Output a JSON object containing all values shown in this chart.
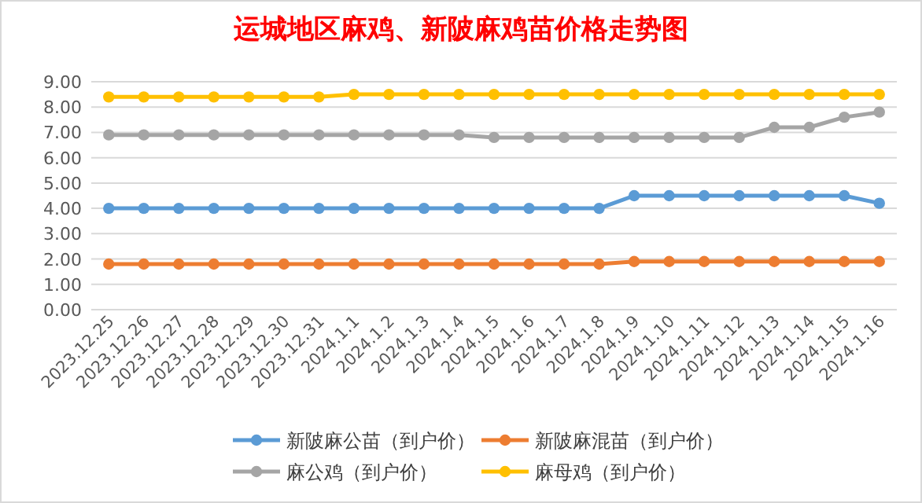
{
  "chart_data": {
    "type": "line",
    "title": "运城地区麻鸡、新陂麻鸡苗价格走势图",
    "categories": [
      "2023.12.25",
      "2023.12.26",
      "2023.12.27",
      "2023.12.28",
      "2023.12.29",
      "2023.12.30",
      "2023.12.31",
      "2024.1.1",
      "2024.1.2",
      "2024.1.3",
      "2024.1.4",
      "2024.1.5",
      "2024.1.6",
      "2024.1.7",
      "2024.1.8",
      "2024.1.9",
      "2024.1.10",
      "2024.1.11",
      "2024.1.12",
      "2024.1.13",
      "2024.1.14",
      "2024.1.15",
      "2024.1.16"
    ],
    "series": [
      {
        "name": "新陂麻公苗（到户价）",
        "color": "#5b9bd5",
        "values": [
          4.0,
          4.0,
          4.0,
          4.0,
          4.0,
          4.0,
          4.0,
          4.0,
          4.0,
          4.0,
          4.0,
          4.0,
          4.0,
          4.0,
          4.0,
          4.5,
          4.5,
          4.5,
          4.5,
          4.5,
          4.5,
          4.5,
          4.2
        ]
      },
      {
        "name": "新陂麻混苗（到户价）",
        "color": "#ed7d31",
        "values": [
          1.8,
          1.8,
          1.8,
          1.8,
          1.8,
          1.8,
          1.8,
          1.8,
          1.8,
          1.8,
          1.8,
          1.8,
          1.8,
          1.8,
          1.8,
          1.9,
          1.9,
          1.9,
          1.9,
          1.9,
          1.9,
          1.9,
          1.9
        ]
      },
      {
        "name": "麻公鸡（到户价）",
        "color": "#a5a5a5",
        "values": [
          6.9,
          6.9,
          6.9,
          6.9,
          6.9,
          6.9,
          6.9,
          6.9,
          6.9,
          6.9,
          6.9,
          6.8,
          6.8,
          6.8,
          6.8,
          6.8,
          6.8,
          6.8,
          6.8,
          7.2,
          7.2,
          7.6,
          7.8
        ]
      },
      {
        "name": "麻母鸡（到户价）",
        "color": "#ffc000",
        "values": [
          8.4,
          8.4,
          8.4,
          8.4,
          8.4,
          8.4,
          8.4,
          8.5,
          8.5,
          8.5,
          8.5,
          8.5,
          8.5,
          8.5,
          8.5,
          8.5,
          8.5,
          8.5,
          8.5,
          8.5,
          8.5,
          8.5,
          8.5
        ]
      }
    ],
    "ylim": [
      0,
      9
    ],
    "yticks": [
      {
        "value": 0,
        "label": "0.00"
      },
      {
        "value": 1,
        "label": "1.00"
      },
      {
        "value": 2,
        "label": "2.00"
      },
      {
        "value": 3,
        "label": "3.00"
      },
      {
        "value": 4,
        "label": "4.00"
      },
      {
        "value": 5,
        "label": "5.00"
      },
      {
        "value": 6,
        "label": "6.00"
      },
      {
        "value": 7,
        "label": "7.00"
      },
      {
        "value": 8,
        "label": "8.00"
      },
      {
        "value": 9,
        "label": "9.00"
      }
    ],
    "grid": "y",
    "legend": "bottom",
    "marker": "circle",
    "line_style": "solid"
  }
}
